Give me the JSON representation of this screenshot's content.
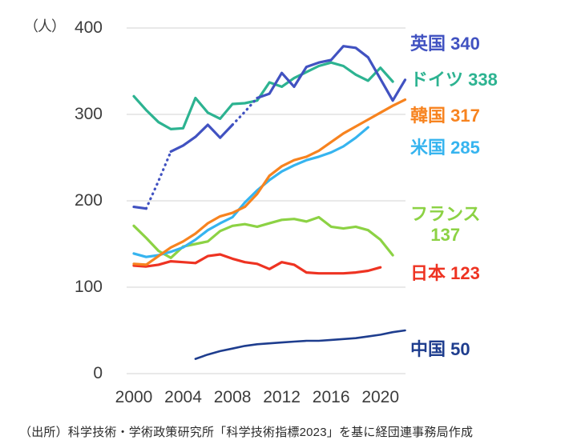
{
  "unit_label": "（人）",
  "footer": "（出所）科学技術・学術政策研究所「科学技術指標2023」を基に経団連事務局作成",
  "colors": {
    "uk": "#4152c1",
    "germany": "#2db391",
    "korea": "#f7831f",
    "usa": "#36b4ef",
    "france": "#8cd244",
    "japan": "#ee3322",
    "china": "#1e3d8e",
    "grid": "#e2e2e2",
    "tick_text": "#3c3c3c"
  },
  "chart_data": {
    "type": "line",
    "title": "",
    "xlabel": "",
    "ylabel": "（人）",
    "x_axis": {
      "range": [
        2000,
        2022
      ],
      "ticks": [
        2000,
        2004,
        2008,
        2012,
        2016,
        2020
      ]
    },
    "y_axis": {
      "range": [
        0,
        400
      ],
      "ticks": [
        400,
        300,
        200,
        100,
        0
      ]
    },
    "grid": "horizontal",
    "legend_position": "right",
    "series": [
      {
        "key": "china",
        "name": "中国",
        "color": "#1e3d8e",
        "width": 2.6,
        "years": [
          2005,
          2006,
          2007,
          2008,
          2009,
          2010,
          2011,
          2012,
          2013,
          2014,
          2015,
          2016,
          2017,
          2018,
          2019,
          2020,
          2021,
          2022
        ],
        "values": [
          17,
          22,
          26,
          29,
          32,
          34,
          35,
          36,
          37,
          38,
          38,
          39,
          40,
          41,
          43,
          45,
          48,
          50
        ]
      },
      {
        "key": "japan",
        "name": "日本",
        "color": "#ee3322",
        "width": 3.2,
        "years": [
          2000,
          2001,
          2002,
          2003,
          2004,
          2005,
          2006,
          2007,
          2008,
          2009,
          2010,
          2011,
          2012,
          2013,
          2014,
          2015,
          2016,
          2017,
          2018,
          2019,
          2020
        ],
        "values": [
          125,
          124,
          126,
          130,
          129,
          128,
          136,
          138,
          133,
          129,
          127,
          121,
          129,
          126,
          117,
          116,
          116,
          116,
          117,
          119,
          123
        ]
      },
      {
        "key": "france",
        "name": "フランス",
        "color": "#8cd244",
        "width": 3.2,
        "years": [
          2000,
          2001,
          2002,
          2003,
          2004,
          2005,
          2006,
          2007,
          2008,
          2009,
          2010,
          2011,
          2012,
          2013,
          2014,
          2015,
          2016,
          2017,
          2018,
          2019,
          2020,
          2021
        ],
        "values": [
          171,
          157,
          142,
          134,
          147,
          150,
          153,
          165,
          171,
          173,
          170,
          174,
          178,
          179,
          176,
          181,
          170,
          168,
          170,
          166,
          155,
          137
        ]
      },
      {
        "key": "usa",
        "name": "米国",
        "color": "#36b4ef",
        "width": 3.2,
        "years": [
          2000,
          2001,
          2002,
          2003,
          2004,
          2005,
          2006,
          2007,
          2008,
          2009,
          2010,
          2011,
          2012,
          2013,
          2014,
          2015,
          2016,
          2017,
          2018,
          2019
        ],
        "values": [
          139,
          135,
          137,
          141,
          146,
          155,
          166,
          174,
          181,
          198,
          212,
          224,
          234,
          241,
          247,
          251,
          256,
          263,
          273,
          285
        ]
      },
      {
        "key": "korea",
        "name": "韓国",
        "color": "#f7831f",
        "width": 3.2,
        "years": [
          2000,
          2001,
          2002,
          2003,
          2004,
          2005,
          2006,
          2007,
          2008,
          2009,
          2010,
          2011,
          2012,
          2013,
          2014,
          2015,
          2016,
          2017,
          2018,
          2019,
          2020,
          2021,
          2022
        ],
        "values": [
          127,
          126,
          136,
          146,
          153,
          162,
          174,
          182,
          186,
          193,
          208,
          229,
          240,
          247,
          251,
          258,
          268,
          278,
          286,
          294,
          302,
          310,
          317
        ]
      },
      {
        "key": "germany",
        "name": "ドイツ",
        "color": "#2db391",
        "width": 3.2,
        "years": [
          2000,
          2001,
          2002,
          2003,
          2004,
          2005,
          2006,
          2007,
          2008,
          2009,
          2010,
          2011,
          2012,
          2013,
          2014,
          2015,
          2016,
          2017,
          2018,
          2019,
          2020,
          2021
        ],
        "values": [
          321,
          305,
          291,
          283,
          284,
          319,
          302,
          295,
          312,
          313,
          316,
          337,
          332,
          342,
          349,
          356,
          360,
          356,
          346,
          339,
          354,
          338
        ]
      },
      {
        "key": "uk",
        "name": "英国",
        "color": "#4152c1",
        "width": 3.2,
        "years": [
          2000,
          2001,
          2002,
          2003,
          2004,
          2005,
          2006,
          2007,
          2008,
          2009,
          2010,
          2011,
          2012,
          2013,
          2014,
          2015,
          2016,
          2017,
          2018,
          2019,
          2020,
          2021,
          2022
        ],
        "values": [
          193,
          191,
          223,
          257,
          264,
          274,
          288,
          273,
          288,
          303,
          319,
          324,
          348,
          332,
          355,
          360,
          363,
          379,
          377,
          366,
          341,
          316,
          340
        ],
        "dotted_ranges": [
          [
            2001,
            2003
          ],
          [
            2008,
            2010
          ]
        ]
      }
    ]
  },
  "legend": {
    "items": [
      {
        "series": "uk",
        "text": "英国",
        "value": "340",
        "two_line": false
      },
      {
        "series": "germany",
        "text": "ドイツ",
        "value": "338",
        "two_line": false
      },
      {
        "series": "korea",
        "text": "韓国",
        "value": "317",
        "two_line": false
      },
      {
        "series": "usa",
        "text": "米国",
        "value": "285",
        "two_line": false
      },
      {
        "series": "france",
        "text": "フランス",
        "value": "137",
        "two_line": true
      },
      {
        "series": "japan",
        "text": "日本",
        "value": "123",
        "two_line": false
      },
      {
        "series": "china",
        "text": "中国",
        "value": "50",
        "two_line": false
      }
    ]
  }
}
